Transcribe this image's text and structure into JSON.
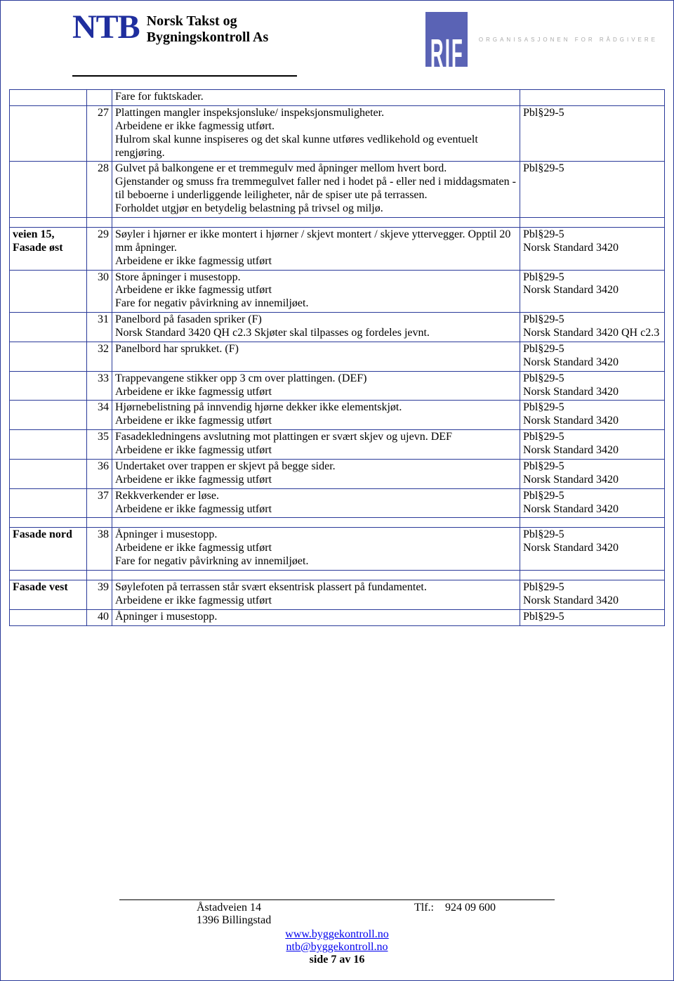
{
  "header": {
    "logo_mark": "NTB",
    "logo_line1": "Norsk Takst og",
    "logo_line2": "Bygningskontroll As",
    "rif_mark": "RIF",
    "rif_tagline": "ORGANISASJONEN FOR RÅDGIVERE"
  },
  "sections": [
    {
      "spacer": false,
      "label": "",
      "num": "",
      "desc": "Fare for fuktskader.",
      "ref": ""
    },
    {
      "spacer": false,
      "label": "",
      "num": "27",
      "desc": "Plattingen mangler inspeksjonsluke/ inspeksjonsmuligheter.\nArbeidene er ikke fagmessig utført.\nHulrom skal kunne inspiseres og det skal kunne utføres vedlikehold og eventuelt rengjøring.",
      "ref": "Pbl§29-5"
    },
    {
      "spacer": false,
      "label": "",
      "num": "28",
      "desc": "Gulvet på balkongene er et tremmegulv med åpninger mellom hvert bord.\nGjenstander og smuss fra tremmegulvet faller ned i hodet på - eller ned i middagsmaten - til beboerne i underliggende leiligheter, når de spiser ute på terrassen.\nForholdet utgjør en betydelig belastning på trivsel og miljø.",
      "ref": "Pbl§29-5"
    },
    {
      "spacer": true
    },
    {
      "spacer": false,
      "label": "veien 15, Fasade øst",
      "num": "29",
      "desc": "Søyler i hjørner er ikke montert i hjørner / skjevt montert / skjeve yttervegger. Opptil 20 mm åpninger.\nArbeidene er ikke fagmessig utført",
      "ref": "Pbl§29-5\nNorsk Standard 3420"
    },
    {
      "spacer": false,
      "label": "",
      "num": "30",
      "desc": "Store åpninger i musestopp.\nArbeidene er ikke fagmessig utført\nFare for negativ påvirkning av innemiljøet.",
      "ref": "Pbl§29-5\nNorsk Standard 3420"
    },
    {
      "spacer": false,
      "label": "",
      "num": "31",
      "desc": "Panelbord på fasaden spriker (F)\nNorsk Standard 3420 QH c2.3 Skjøter skal tilpasses og fordeles jevnt.",
      "ref": "Pbl§29-5\nNorsk Standard 3420 QH c2.3"
    },
    {
      "spacer": false,
      "label": "",
      "num": "32",
      "desc": "Panelbord har sprukket. (F)",
      "ref": "Pbl§29-5\nNorsk Standard 3420"
    },
    {
      "spacer": false,
      "label": "",
      "num": "33",
      "desc": "Trappevangene stikker opp 3 cm over plattingen. (DEF)\nArbeidene er ikke fagmessig utført",
      "ref": "Pbl§29-5\nNorsk Standard 3420"
    },
    {
      "spacer": false,
      "label": "",
      "num": "34",
      "desc": "Hjørnebelistning på innvendig hjørne dekker ikke elementskjøt.\nArbeidene er ikke fagmessig utført",
      "ref": "Pbl§29-5\nNorsk Standard 3420"
    },
    {
      "spacer": false,
      "label": "",
      "num": "35",
      "desc": "Fasadekledningens avslutning mot plattingen er svært skjev og ujevn. DEF\nArbeidene er ikke fagmessig utført",
      "ref": "Pbl§29-5\nNorsk Standard 3420"
    },
    {
      "spacer": false,
      "label": "",
      "num": "36",
      "desc": "Undertaket over trappen er skjevt på begge sider.\nArbeidene er ikke fagmessig utført",
      "ref": "Pbl§29-5\nNorsk Standard 3420"
    },
    {
      "spacer": false,
      "label": "",
      "num": "37",
      "desc": "Rekkverkender er løse.\nArbeidene er ikke fagmessig utført",
      "ref": "Pbl§29-5\nNorsk Standard 3420"
    },
    {
      "spacer": true
    },
    {
      "spacer": false,
      "label": "Fasade nord",
      "num": "38",
      "desc": "Åpninger i musestopp.\nArbeidene er ikke fagmessig utført\nFare for negativ påvirkning av innemiljøet.",
      "ref": "Pbl§29-5\nNorsk Standard 3420"
    },
    {
      "spacer": true
    },
    {
      "spacer": false,
      "label": "Fasade vest",
      "num": "39",
      "desc": "Søylefoten på terrassen står svært eksentrisk plassert på fundamentet.\nArbeidene er ikke fagmessig utført",
      "ref": "Pbl§29-5\nNorsk Standard 3420"
    },
    {
      "spacer": false,
      "label": "",
      "num": "40",
      "desc": "Åpninger i musestopp.",
      "ref": "Pbl§29-5"
    }
  ],
  "footer": {
    "addr1": "Åstadveien 14",
    "addr2": "1396 Billingstad",
    "phone_label": "Tlf.:",
    "phone": "924 09 600",
    "web": "www.byggekontroll.no",
    "email": "ntb@byggekontroll.no",
    "page": "side 7 av 16"
  }
}
